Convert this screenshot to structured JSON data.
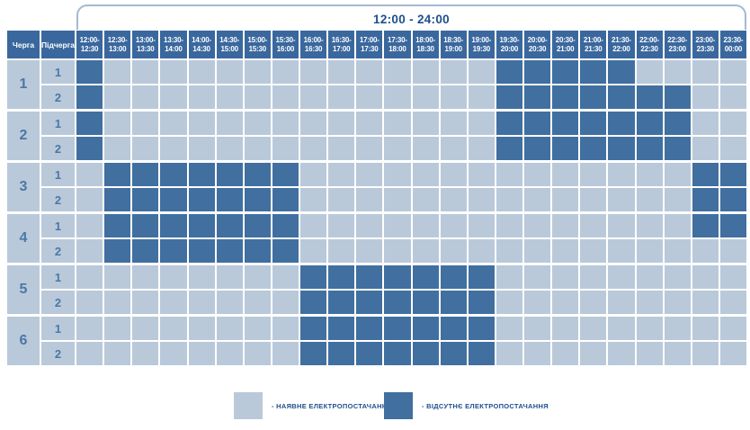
{
  "table": {
    "corner_headers": [
      "Черга",
      "Підчерга"
    ]
  },
  "chart_data": {
    "type": "heatmap",
    "title": "12:00 - 24:00",
    "x_labels": [
      "12:00-12:30",
      "12:30-13:00",
      "13:00-13:30",
      "13:30-14:00",
      "14:00-14:30",
      "14:30-15:00",
      "15:00-15:30",
      "15:30-16:00",
      "16:00-16:30",
      "16:30-17:00",
      "17:00-17:30",
      "17:30-18:00",
      "18:00-18:30",
      "18:30-19:00",
      "19:00-19:30",
      "19:30-20:00",
      "20:00-20:30",
      "20:30-21:00",
      "21:00-21:30",
      "21:30-22:00",
      "22:00-22:30",
      "22:30-23:00",
      "23:00-23:30",
      "23:30-00:00"
    ],
    "value_meaning": {
      "0": "наявне електропостачання",
      "1": "відсутнє електропостачання"
    },
    "row_groups": [
      {
        "queue": "1",
        "rows": [
          {
            "subqueue": "1",
            "outage_by_slot": [
              1,
              0,
              0,
              0,
              0,
              0,
              0,
              0,
              0,
              0,
              0,
              0,
              0,
              0,
              0,
              1,
              1,
              1,
              1,
              1,
              0,
              0,
              0,
              0
            ]
          },
          {
            "subqueue": "2",
            "outage_by_slot": [
              1,
              0,
              0,
              0,
              0,
              0,
              0,
              0,
              0,
              0,
              0,
              0,
              0,
              0,
              0,
              1,
              1,
              1,
              1,
              1,
              1,
              1,
              0,
              0
            ]
          }
        ]
      },
      {
        "queue": "2",
        "rows": [
          {
            "subqueue": "1",
            "outage_by_slot": [
              1,
              0,
              0,
              0,
              0,
              0,
              0,
              0,
              0,
              0,
              0,
              0,
              0,
              0,
              0,
              1,
              1,
              1,
              1,
              1,
              1,
              1,
              0,
              0
            ]
          },
          {
            "subqueue": "2",
            "outage_by_slot": [
              1,
              0,
              0,
              0,
              0,
              0,
              0,
              0,
              0,
              0,
              0,
              0,
              0,
              0,
              0,
              1,
              1,
              1,
              1,
              1,
              1,
              1,
              0,
              0
            ]
          }
        ]
      },
      {
        "queue": "3",
        "rows": [
          {
            "subqueue": "1",
            "outage_by_slot": [
              0,
              1,
              1,
              1,
              1,
              1,
              1,
              1,
              0,
              0,
              0,
              0,
              0,
              0,
              0,
              0,
              0,
              0,
              0,
              0,
              0,
              0,
              1,
              1
            ]
          },
          {
            "subqueue": "2",
            "outage_by_slot": [
              0,
              1,
              1,
              1,
              1,
              1,
              1,
              1,
              0,
              0,
              0,
              0,
              0,
              0,
              0,
              0,
              0,
              0,
              0,
              0,
              0,
              0,
              1,
              1
            ]
          }
        ]
      },
      {
        "queue": "4",
        "rows": [
          {
            "subqueue": "1",
            "outage_by_slot": [
              0,
              1,
              1,
              1,
              1,
              1,
              1,
              1,
              0,
              0,
              0,
              0,
              0,
              0,
              0,
              0,
              0,
              0,
              0,
              0,
              0,
              0,
              1,
              1
            ]
          },
          {
            "subqueue": "2",
            "outage_by_slot": [
              0,
              1,
              1,
              1,
              1,
              1,
              1,
              1,
              0,
              0,
              0,
              0,
              0,
              0,
              0,
              0,
              0,
              0,
              0,
              0,
              0,
              0,
              0,
              0
            ]
          }
        ]
      },
      {
        "queue": "5",
        "rows": [
          {
            "subqueue": "1",
            "outage_by_slot": [
              0,
              0,
              0,
              0,
              0,
              0,
              0,
              0,
              1,
              1,
              1,
              1,
              1,
              1,
              1,
              0,
              0,
              0,
              0,
              0,
              0,
              0,
              0,
              0
            ]
          },
          {
            "subqueue": "2",
            "outage_by_slot": [
              0,
              0,
              0,
              0,
              0,
              0,
              0,
              0,
              1,
              1,
              1,
              1,
              1,
              1,
              1,
              0,
              0,
              0,
              0,
              0,
              0,
              0,
              0,
              0
            ]
          }
        ]
      },
      {
        "queue": "6",
        "rows": [
          {
            "subqueue": "1",
            "outage_by_slot": [
              0,
              0,
              0,
              0,
              0,
              0,
              0,
              0,
              1,
              1,
              1,
              1,
              1,
              1,
              1,
              0,
              0,
              0,
              0,
              0,
              0,
              0,
              0,
              0
            ]
          },
          {
            "subqueue": "2",
            "outage_by_slot": [
              0,
              0,
              0,
              0,
              0,
              0,
              0,
              0,
              1,
              1,
              1,
              1,
              1,
              1,
              1,
              0,
              0,
              0,
              0,
              0,
              0,
              0,
              0,
              0
            ]
          }
        ]
      }
    ]
  },
  "legend": {
    "items": [
      {
        "state": "available",
        "label": "- НАЯВНЕ ЕЛЕКТРОПОСТАЧАННЯ",
        "color": "#b9c9da"
      },
      {
        "state": "outage",
        "label": "- ВІДСУТНЄ ЕЛЕКТРОПОСТАЧАННЯ",
        "color": "#416fa0"
      }
    ]
  },
  "colors": {
    "power_on": "#b9c9da",
    "power_off": "#416fa0",
    "header_bg": "#3a689e",
    "accent_text": "#1e4f8c",
    "bracket_line": "#a3b9d2",
    "label_text": "#4b77a7"
  }
}
